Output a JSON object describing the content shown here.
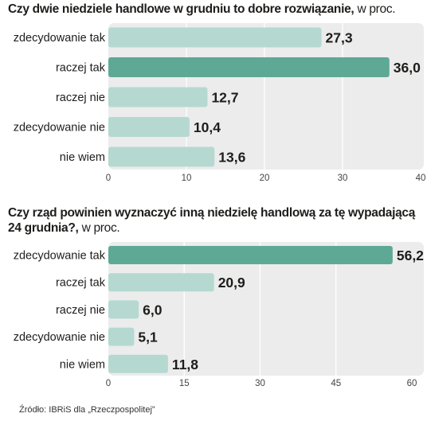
{
  "colors": {
    "panel": "#ececec",
    "bar": "#b5d9d1",
    "bar_highlight": "#5ea896",
    "text": "#1d1d1b",
    "gridline": "#ffffff"
  },
  "source": "Źródło: IBRiS dla „Rzeczpospolitej”",
  "chart_data": [
    {
      "type": "bar",
      "orientation": "horizontal",
      "title": "Czy dwie niedziele handlowe w grudniu to dobre rozwiązanie,",
      "unit": "w proc.",
      "categories": [
        "zdecydowanie tak",
        "raczej tak",
        "raczej nie",
        "zdecydowanie nie",
        "nie wiem"
      ],
      "values": [
        27.3,
        36.0,
        12.7,
        10.4,
        13.6
      ],
      "value_labels": [
        "27,3",
        "36,0",
        "12,7",
        "10,4",
        "13,6"
      ],
      "highlight_index": 1,
      "xlim": [
        0,
        40
      ],
      "xticks": [
        0,
        10,
        20,
        30,
        40
      ],
      "grid": true
    },
    {
      "type": "bar",
      "orientation": "horizontal",
      "title_lines": [
        "Czy rząd powinien wyznaczyć inną niedzielę handlową za tę wypadającą",
        "24 grudnia?,"
      ],
      "unit": "w proc.",
      "categories": [
        "zdecydowanie tak",
        "raczej tak",
        "raczej nie",
        "zdecydowanie nie",
        "nie wiem"
      ],
      "values": [
        56.2,
        20.9,
        6.0,
        5.1,
        11.8
      ],
      "value_labels": [
        "56,2",
        "20,9",
        "6,0",
        "5,1",
        "11,8"
      ],
      "highlight_index": 0,
      "xlim": [
        0,
        60
      ],
      "xticks": [
        0,
        15,
        30,
        45,
        60
      ],
      "grid": true
    }
  ]
}
